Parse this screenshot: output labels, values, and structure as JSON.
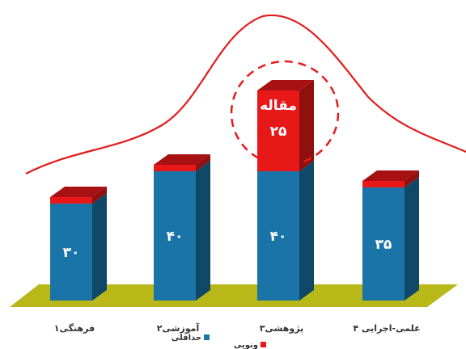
{
  "chart_data": {
    "type": "bar",
    "stacked": true,
    "style": "3d",
    "categories": [
      "فرهنگی۱",
      "آموزشی۲",
      "پژوهشی۳",
      "علمی-اجرایی ۴"
    ],
    "series": [
      {
        "name": "حداقلی",
        "color": "#1a74a8",
        "values": [
          30,
          40,
          40,
          35
        ],
        "labels": [
          "۳۰",
          "۴۰",
          "۴۰",
          "۳۵"
        ]
      },
      {
        "name": "ونویی",
        "color": "#e81818",
        "values": [
          2,
          2,
          25,
          2
        ],
        "labels": [
          "",
          "",
          "۲۵",
          ""
        ]
      }
    ],
    "callout": {
      "text": "مقاله",
      "category_index": 2
    },
    "trend_curve_color": "#e31b1b",
    "floor_color": "#b8b818",
    "ylim": [
      0,
      90
    ],
    "grid": false,
    "legend_position": "bottom-center"
  }
}
